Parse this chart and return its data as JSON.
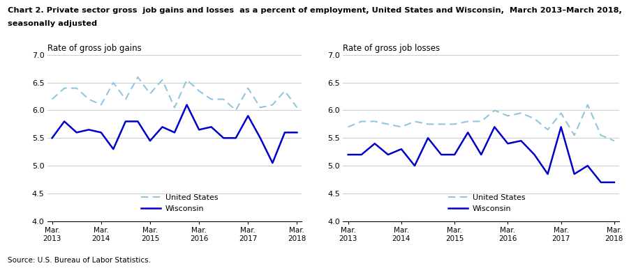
{
  "title_line1": "Chart 2. Private sector gross  job gains and losses  as a percent of employment, United States and Wisconsin,  March 2013–March 2018,",
  "title_line2": "seasonally adjusted",
  "left_ylabel": "Rate of gross job gains",
  "right_ylabel": "Rate of gross job losses",
  "source": "Source: U.S. Bureau of Labor Statistics.",
  "xtick_labels": [
    "Mar.\n2013",
    "Mar.\n2014",
    "Mar.\n2015",
    "Mar.\n2016",
    "Mar.\n2017",
    "Mar.\n2018"
  ],
  "ylim": [
    4.0,
    7.0
  ],
  "yticks": [
    4.0,
    4.5,
    5.0,
    5.5,
    6.0,
    6.5,
    7.0
  ],
  "us_color": "#92c5de",
  "wi_color": "#0000cd",
  "legend_us": "United States",
  "legend_wi": "Wisconsin",
  "gains_us": [
    6.2,
    6.4,
    6.4,
    6.2,
    6.1,
    6.5,
    6.2,
    6.6,
    6.3,
    6.55,
    6.05,
    6.55,
    6.35,
    6.2,
    6.2,
    6.0,
    6.4,
    6.05,
    6.1,
    6.35,
    6.05
  ],
  "gains_wi": [
    5.5,
    5.8,
    5.6,
    5.65,
    5.6,
    5.3,
    5.8,
    5.8,
    5.45,
    5.7,
    5.6,
    6.1,
    5.65,
    5.7,
    5.5,
    5.5,
    5.9,
    5.5,
    5.05,
    5.6,
    5.6
  ],
  "losses_us": [
    5.7,
    5.8,
    5.8,
    5.75,
    5.7,
    5.8,
    5.75,
    5.75,
    5.75,
    5.8,
    5.8,
    6.0,
    5.9,
    5.95,
    5.85,
    5.65,
    5.95,
    5.55,
    6.1,
    5.55,
    5.45
  ],
  "losses_wi": [
    5.2,
    5.2,
    5.4,
    5.2,
    5.3,
    5.0,
    5.5,
    5.2,
    5.2,
    5.6,
    5.2,
    5.7,
    5.4,
    5.45,
    5.2,
    4.85,
    5.7,
    4.85,
    5.0,
    4.7,
    4.7
  ]
}
